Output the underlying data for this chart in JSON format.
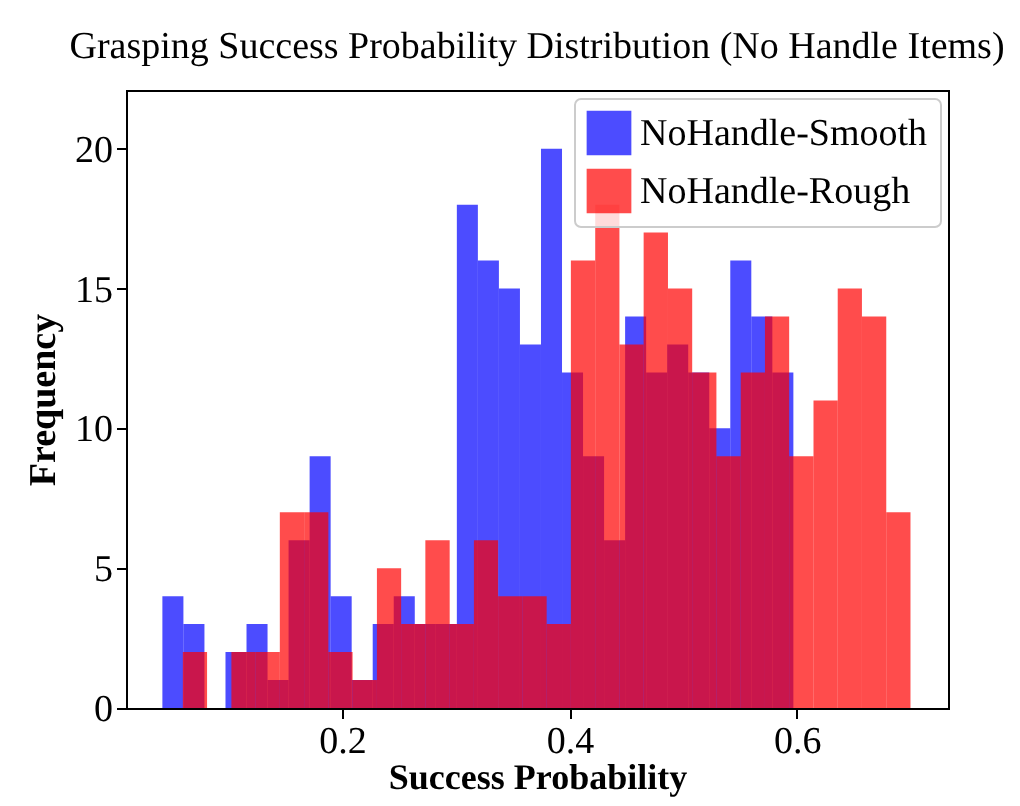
{
  "chart_data": {
    "type": "histogram",
    "title": "Grasping Success Probability Distribution (No Handle Items)",
    "xlabel": "Success Probability",
    "ylabel": "Frequency",
    "series": [
      {
        "name": "NoHandle-Smooth",
        "color": "#0000ff",
        "bins": [
          0.042,
          0.0605,
          0.079,
          0.0975,
          0.116,
          0.1345,
          0.153,
          0.1715,
          0.19,
          0.2085,
          0.227,
          0.2455,
          0.264,
          0.2825,
          0.301,
          0.3195,
          0.338,
          0.3565,
          0.375,
          0.3935,
          0.412,
          0.4305,
          0.449,
          0.4675,
          0.486,
          0.5045,
          0.523,
          0.5415,
          0.56,
          0.5785,
          0.597
        ],
        "values": [
          4,
          3,
          0,
          2,
          3,
          1,
          6,
          9,
          4,
          1,
          3,
          4,
          3,
          3,
          18,
          16,
          15,
          13,
          20,
          12,
          9,
          6,
          14,
          12,
          13,
          12,
          10,
          16,
          14,
          12
        ]
      },
      {
        "name": "NoHandle-Rough",
        "color": "#ff0000",
        "values": [
          2,
          0,
          2,
          2,
          7,
          7,
          2,
          1,
          5,
          3,
          6,
          3,
          6,
          4,
          4,
          3,
          16,
          18,
          13,
          17,
          15,
          12,
          9,
          12,
          14,
          9,
          11,
          15,
          14,
          7
        ]
      }
    ],
    "bins": [
      0.06,
      0.0813,
      0.1027,
      0.124,
      0.1453,
      0.1667,
      0.188,
      0.2093,
      0.2307,
      0.252,
      0.2733,
      0.2947,
      0.316,
      0.3373,
      0.3587,
      0.38,
      0.4013,
      0.4227,
      0.444,
      0.4653,
      0.4867,
      0.508,
      0.5293,
      0.5507,
      0.572,
      0.5933,
      0.6147,
      0.636,
      0.6573,
      0.6787,
      0.7
    ],
    "xlim": [
      0.01,
      0.733
    ],
    "xticks": [
      0.2,
      0.4,
      0.6
    ],
    "ylim": [
      0,
      22.1
    ],
    "yticks": [
      0,
      5,
      10,
      15,
      20
    ],
    "legend": "top right"
  }
}
